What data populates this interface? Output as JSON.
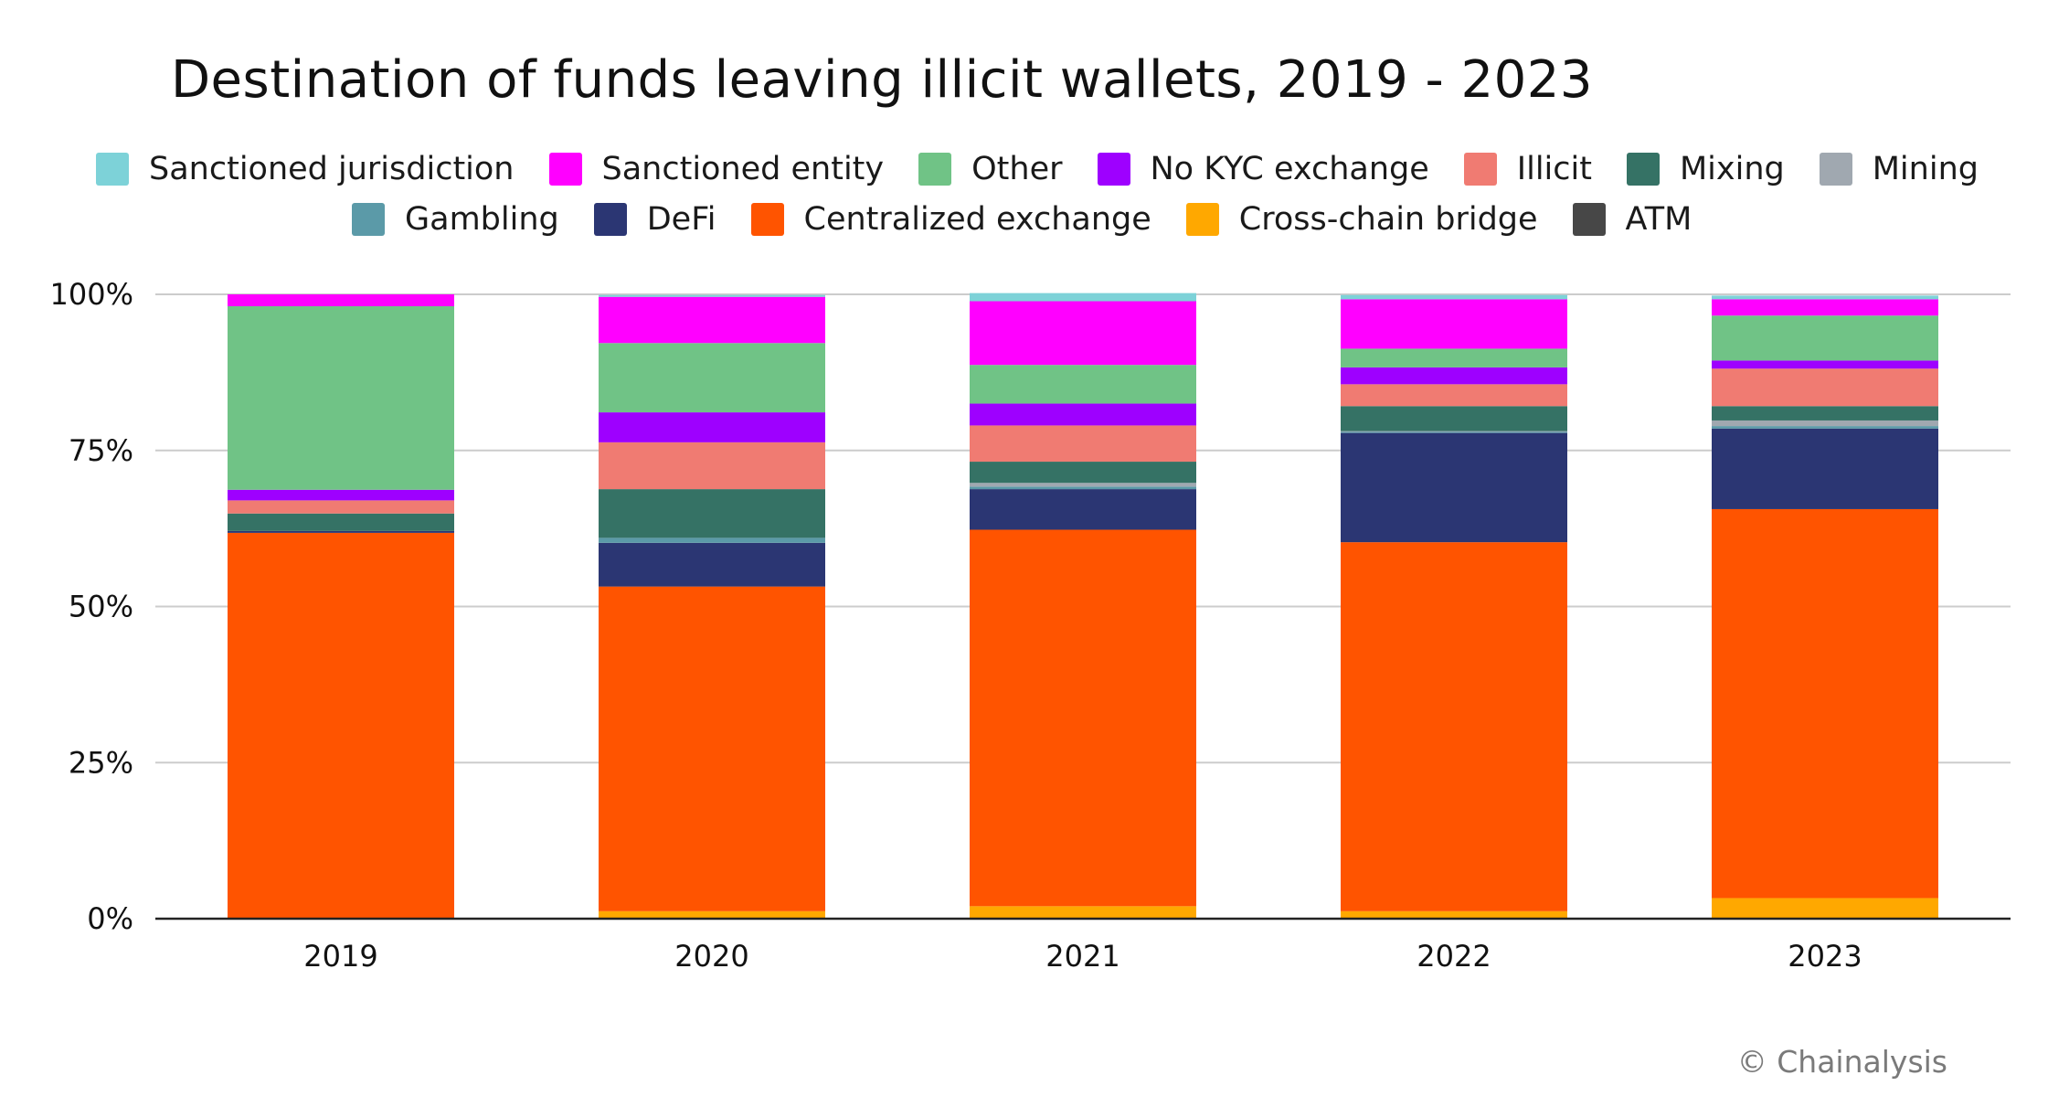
{
  "chart_data": {
    "type": "bar",
    "stacked": true,
    "normalized": true,
    "title": "Destination of funds leaving illicit wallets, 2019 - 2023",
    "xlabel": "",
    "ylabel": "",
    "categories": [
      "2019",
      "2020",
      "2021",
      "2022",
      "2023"
    ],
    "ylim": [
      0,
      100
    ],
    "yticks": [
      0,
      25,
      50,
      75,
      100
    ],
    "ytick_labels": [
      "0%",
      "25%",
      "50%",
      "75%",
      "100%"
    ],
    "grid": true,
    "legend_position": "top",
    "series": [
      {
        "name": "Cross-chain bridge",
        "color": "#FFA800",
        "values": [
          0.0,
          1.2,
          2.0,
          1.2,
          3.3
        ]
      },
      {
        "name": "Centralized exchange",
        "color": "#FF5400",
        "values": [
          61.8,
          52.0,
          60.3,
          59.1,
          62.3
        ]
      },
      {
        "name": "DeFi",
        "color": "#2B3673",
        "values": [
          0.3,
          7.0,
          6.5,
          17.5,
          12.9
        ]
      },
      {
        "name": "Gambling",
        "color": "#5B9AA8",
        "values": [
          0.0,
          0.8,
          0.4,
          0.2,
          0.4
        ]
      },
      {
        "name": "Mining",
        "color": "#A0A8B0",
        "values": [
          0.0,
          0.0,
          0.6,
          0.1,
          0.9
        ]
      },
      {
        "name": "Mixing",
        "color": "#357265",
        "values": [
          2.8,
          7.8,
          3.4,
          4.0,
          2.3
        ]
      },
      {
        "name": "Illicit",
        "color": "#F07B72",
        "values": [
          2.1,
          7.5,
          5.8,
          3.5,
          6.0
        ]
      },
      {
        "name": "No KYC exchange",
        "color": "#9E00FF",
        "values": [
          1.7,
          4.8,
          3.5,
          2.7,
          1.3
        ]
      },
      {
        "name": "Other",
        "color": "#70C386",
        "values": [
          29.4,
          11.1,
          6.2,
          3.0,
          7.2
        ]
      },
      {
        "name": "Sanctioned entity",
        "color": "#FF00FF",
        "values": [
          1.9,
          7.4,
          10.2,
          7.9,
          2.6
        ]
      },
      {
        "name": "Sanctioned jurisdiction",
        "color": "#7DD2D8",
        "values": [
          0.0,
          0.3,
          1.3,
          0.7,
          0.6
        ]
      },
      {
        "name": "ATM",
        "color": "#474747",
        "values": [
          0.0,
          0.0,
          0.0,
          0.0,
          0.0
        ]
      }
    ]
  },
  "legend": {
    "row1": [
      {
        "label": "Sanctioned jurisdiction",
        "color": "#7DD2D8"
      },
      {
        "label": "Sanctioned entity",
        "color": "#FF00FF"
      },
      {
        "label": "Other",
        "color": "#70C386"
      },
      {
        "label": "No KYC exchange",
        "color": "#9E00FF"
      },
      {
        "label": "Illicit",
        "color": "#F07B72"
      },
      {
        "label": "Mixing",
        "color": "#357265"
      },
      {
        "label": "Mining",
        "color": "#A0A8B0"
      }
    ],
    "row2": [
      {
        "label": "Gambling",
        "color": "#5B9AA8"
      },
      {
        "label": "DeFi",
        "color": "#2B3673"
      },
      {
        "label": "Centralized exchange",
        "color": "#FF5400"
      },
      {
        "label": "Cross-chain bridge",
        "color": "#FFA800"
      },
      {
        "label": "ATM",
        "color": "#474747"
      }
    ]
  },
  "footer": {
    "copyright": "© Chainalysis"
  }
}
